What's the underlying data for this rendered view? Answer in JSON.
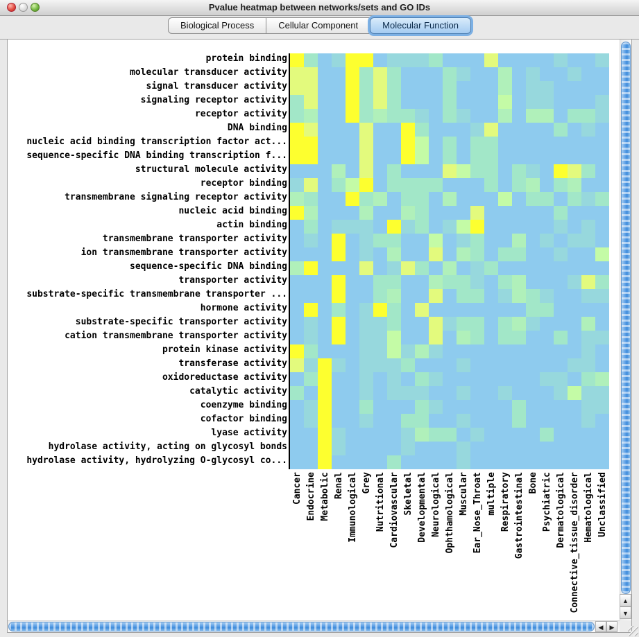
{
  "window": {
    "title": "Pvalue heatmap between networks/sets and GO IDs"
  },
  "tabs": [
    {
      "label": "Biological Process",
      "selected": false
    },
    {
      "label": "Cellular Component",
      "selected": false
    },
    {
      "label": "Molecular Function",
      "selected": true
    }
  ],
  "scrollbar": {
    "up": "▲",
    "down": "▼",
    "left": "◀",
    "right": "▶"
  },
  "chart_data": {
    "type": "heatmap",
    "title": "Pvalue heatmap between networks/sets and GO IDs",
    "rows": [
      "protein binding",
      "molecular transducer activity",
      "signal transducer activity",
      "signaling receptor activity",
      "receptor activity",
      "DNA binding",
      "nucleic acid binding transcription factor act...",
      "sequence-specific DNA binding transcription f...",
      "structural molecule activity",
      "receptor binding",
      "transmembrane signaling receptor activity",
      "nucleic acid binding",
      "actin binding",
      "transmembrane transporter activity",
      "ion transmembrane transporter activity",
      "sequence-specific DNA binding",
      "transporter activity",
      "substrate-specific transmembrane transporter ...",
      "hormone activity",
      "substrate-specific transporter activity",
      "cation transmembrane transporter activity",
      "protein kinase activity",
      "transferase activity",
      "oxidoreductase activity",
      "catalytic activity",
      "coenzyme binding",
      "cofactor binding",
      "lyase activity",
      "hydrolase activity, acting on glycosyl bonds",
      "hydrolase activity, hydrolyzing O-glycosyl co..."
    ],
    "columns": [
      "Cancer",
      "Endocrine",
      "Metabolic",
      "Renal",
      "Immunological",
      "Grey",
      "Nutritional",
      "Cardiovascular",
      "Skeletal",
      "Developmental",
      "Neurological",
      "Ophthamological",
      "Muscular",
      "Ear_Nose_Throat",
      "multiple",
      "Respiratory",
      "Gastrointestinal",
      "Bone",
      "Psychiatric",
      "Dermatological",
      "Connective_tissue_disorder",
      "Hematological",
      "Unclassified"
    ],
    "palette": [
      "#fdff2f",
      "#e3fa7d",
      "#c4fba6",
      "#b0f0ba",
      "#a2e7c8",
      "#97d8dd",
      "#8ecbee"
    ],
    "palette_meaning": "0 = yellow (most significant p-value) through 6 = light blue (least significant)",
    "values": [
      [
        0,
        4,
        6,
        5,
        0,
        0,
        6,
        5,
        5,
        5,
        4,
        6,
        6,
        6,
        1,
        6,
        6,
        6,
        6,
        5,
        6,
        6,
        5
      ],
      [
        1,
        1,
        6,
        6,
        0,
        4,
        1,
        4,
        6,
        6,
        6,
        4,
        5,
        6,
        6,
        3,
        6,
        5,
        6,
        6,
        5,
        6,
        6
      ],
      [
        1,
        1,
        6,
        6,
        0,
        4,
        1,
        4,
        6,
        6,
        6,
        4,
        6,
        6,
        6,
        3,
        6,
        5,
        5,
        6,
        6,
        6,
        6
      ],
      [
        4,
        1,
        6,
        6,
        0,
        4,
        1,
        4,
        6,
        6,
        6,
        4,
        6,
        6,
        6,
        2,
        6,
        5,
        5,
        6,
        6,
        6,
        5
      ],
      [
        4,
        3,
        6,
        6,
        0,
        4,
        3,
        4,
        4,
        5,
        6,
        4,
        5,
        6,
        6,
        3,
        6,
        3,
        3,
        6,
        4,
        4,
        5
      ],
      [
        0,
        1,
        6,
        6,
        6,
        1,
        6,
        6,
        0,
        4,
        6,
        6,
        6,
        5,
        1,
        6,
        6,
        6,
        6,
        4,
        6,
        5,
        6
      ],
      [
        0,
        0,
        6,
        6,
        6,
        1,
        6,
        6,
        0,
        2,
        6,
        4,
        6,
        4,
        4,
        6,
        6,
        6,
        6,
        6,
        6,
        6,
        6
      ],
      [
        0,
        0,
        6,
        6,
        6,
        1,
        6,
        6,
        0,
        2,
        6,
        4,
        6,
        4,
        4,
        6,
        6,
        6,
        6,
        6,
        6,
        6,
        6
      ],
      [
        6,
        6,
        6,
        3,
        6,
        1,
        6,
        4,
        6,
        6,
        6,
        1,
        2,
        4,
        4,
        6,
        4,
        5,
        6,
        0,
        1,
        4,
        6
      ],
      [
        5,
        1,
        6,
        4,
        2,
        0,
        6,
        4,
        4,
        4,
        4,
        6,
        6,
        6,
        4,
        6,
        4,
        3,
        6,
        4,
        3,
        6,
        6
      ],
      [
        3,
        4,
        6,
        6,
        0,
        4,
        3,
        6,
        4,
        4,
        6,
        3,
        6,
        6,
        6,
        2,
        6,
        4,
        4,
        6,
        4,
        5,
        4
      ],
      [
        0,
        3,
        6,
        6,
        6,
        3,
        6,
        6,
        3,
        4,
        6,
        6,
        6,
        1,
        6,
        6,
        6,
        6,
        6,
        4,
        6,
        6,
        6
      ],
      [
        6,
        4,
        6,
        5,
        5,
        5,
        6,
        0,
        5,
        4,
        6,
        5,
        2,
        0,
        6,
        6,
        6,
        6,
        6,
        5,
        6,
        5,
        6
      ],
      [
        6,
        5,
        6,
        0,
        6,
        5,
        4,
        4,
        6,
        6,
        2,
        6,
        5,
        4,
        6,
        6,
        3,
        6,
        5,
        6,
        5,
        5,
        6
      ],
      [
        6,
        6,
        6,
        0,
        6,
        5,
        6,
        3,
        6,
        6,
        1,
        6,
        3,
        4,
        6,
        4,
        4,
        6,
        6,
        5,
        6,
        6,
        2
      ],
      [
        3,
        0,
        6,
        6,
        6,
        1,
        6,
        5,
        1,
        4,
        6,
        3,
        6,
        5,
        4,
        6,
        6,
        6,
        6,
        6,
        6,
        6,
        6
      ],
      [
        6,
        6,
        6,
        0,
        6,
        6,
        4,
        4,
        6,
        6,
        3,
        4,
        4,
        5,
        6,
        4,
        3,
        6,
        6,
        6,
        5,
        1,
        4
      ],
      [
        6,
        6,
        6,
        0,
        6,
        6,
        4,
        3,
        6,
        6,
        1,
        6,
        4,
        4,
        6,
        5,
        3,
        4,
        5,
        6,
        6,
        5,
        5
      ],
      [
        6,
        0,
        6,
        4,
        6,
        5,
        0,
        4,
        6,
        1,
        6,
        6,
        6,
        6,
        6,
        6,
        6,
        4,
        4,
        6,
        6,
        6,
        6
      ],
      [
        6,
        5,
        6,
        0,
        6,
        5,
        5,
        4,
        6,
        6,
        1,
        5,
        4,
        4,
        6,
        4,
        3,
        5,
        6,
        6,
        6,
        3,
        6
      ],
      [
        6,
        5,
        6,
        0,
        6,
        5,
        5,
        2,
        6,
        6,
        1,
        6,
        3,
        4,
        6,
        4,
        4,
        6,
        6,
        4,
        6,
        5,
        5
      ],
      [
        0,
        4,
        6,
        6,
        6,
        5,
        5,
        2,
        5,
        3,
        5,
        6,
        6,
        6,
        6,
        6,
        6,
        6,
        6,
        6,
        6,
        5,
        6
      ],
      [
        1,
        5,
        0,
        5,
        6,
        5,
        5,
        5,
        4,
        6,
        6,
        6,
        5,
        6,
        6,
        6,
        6,
        6,
        6,
        6,
        5,
        5,
        6
      ],
      [
        6,
        4,
        0,
        6,
        6,
        5,
        6,
        5,
        6,
        4,
        5,
        6,
        6,
        6,
        6,
        6,
        6,
        6,
        5,
        5,
        6,
        4,
        3
      ],
      [
        4,
        6,
        0,
        6,
        6,
        5,
        6,
        5,
        5,
        5,
        6,
        6,
        5,
        6,
        6,
        5,
        6,
        6,
        6,
        5,
        2,
        5,
        5
      ],
      [
        6,
        5,
        0,
        6,
        6,
        4,
        6,
        6,
        6,
        4,
        5,
        6,
        6,
        6,
        6,
        6,
        4,
        6,
        6,
        6,
        6,
        5,
        5
      ],
      [
        6,
        5,
        0,
        6,
        6,
        5,
        6,
        6,
        4,
        4,
        6,
        6,
        5,
        6,
        6,
        6,
        4,
        6,
        6,
        6,
        6,
        5,
        6
      ],
      [
        6,
        6,
        0,
        5,
        6,
        6,
        6,
        6,
        5,
        3,
        4,
        4,
        6,
        5,
        6,
        6,
        6,
        6,
        4,
        6,
        6,
        6,
        6
      ],
      [
        6,
        6,
        0,
        5,
        6,
        6,
        6,
        6,
        5,
        6,
        6,
        6,
        5,
        6,
        6,
        6,
        6,
        6,
        6,
        6,
        6,
        6,
        6
      ],
      [
        6,
        6,
        0,
        6,
        6,
        6,
        6,
        4,
        6,
        6,
        6,
        6,
        5,
        6,
        6,
        6,
        6,
        6,
        6,
        6,
        6,
        6,
        6
      ]
    ],
    "layout": {
      "cell_size_px": 20,
      "row_labels_position": "left",
      "column_labels_position": "bottom",
      "column_labels_rotation_deg": 90,
      "grid": false
    }
  }
}
